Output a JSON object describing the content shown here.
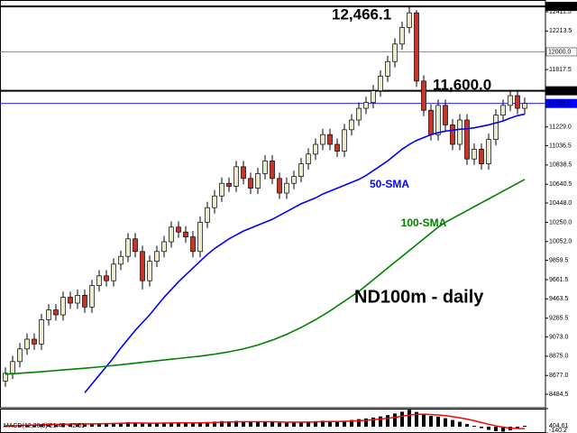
{
  "chart_data": [
    {
      "type": "candlestick",
      "up_color": "#ecebd0",
      "down_color": "#c8342a",
      "ylim": [
        8346,
        12532
      ],
      "yticks": [
        12411.5,
        12213.5,
        11817.5,
        {
          "value": 11229,
          "label": "11229.0"
        },
        11036.5,
        10838.5,
        10640.5,
        {
          "value": 10448,
          "label": "10448.0"
        },
        {
          "value": 10250,
          "label": "10250.0"
        },
        {
          "value": 10052,
          "label": "10052.0"
        },
        9859.5,
        9661.5,
        9463.5,
        9265.5,
        {
          "value": 9073,
          "label": "9073.0"
        },
        {
          "value": 8875,
          "label": "8875.0"
        },
        {
          "value": 8677,
          "label": "8677.0"
        },
        8484.5
      ],
      "open": [
        8620,
        8700,
        8820,
        8950,
        9050,
        9000,
        9250,
        9350,
        9300,
        9480,
        9420,
        9500,
        9380,
        9600,
        9700,
        9650,
        9820,
        9900,
        10080,
        9950,
        9650,
        9850,
        9950,
        10050,
        10200,
        10150,
        10100,
        9950,
        10250,
        10400,
        10520,
        10650,
        10620,
        10820,
        10700,
        10600,
        10750,
        10880,
        10700,
        10550,
        10650,
        10720,
        10850,
        10950,
        11050,
        11150,
        11050,
        10980,
        11200,
        11300,
        11420,
        11480,
        11600,
        11750,
        11900,
        12080,
        12250,
        12400,
        11700,
        11400,
        11150,
        11450,
        11250,
        11050,
        11300,
        10900,
        11000,
        10850,
        11100,
        11350,
        11450,
        11550,
        11420
      ],
      "high": [
        8760,
        8880,
        9010,
        9110,
        9110,
        9310,
        9410,
        9410,
        9540,
        9540,
        9560,
        9560,
        9660,
        9760,
        9760,
        9880,
        9960,
        10140,
        10140,
        10010,
        9910,
        10010,
        10110,
        10260,
        10260,
        10210,
        10160,
        10310,
        10460,
        10580,
        10710,
        10710,
        10880,
        10880,
        10760,
        10810,
        10940,
        10940,
        10760,
        10710,
        10780,
        10910,
        11010,
        11110,
        11210,
        11210,
        11110,
        11260,
        11360,
        11480,
        11540,
        11660,
        11810,
        11960,
        12140,
        12310,
        12466.1,
        12430,
        11760,
        11460,
        11510,
        11510,
        11310,
        11360,
        11360,
        11060,
        11060,
        11160,
        11410,
        11510,
        11610,
        11610,
        11530
      ],
      "low": [
        8560,
        8640,
        8760,
        8890,
        8940,
        8940,
        9190,
        9240,
        9240,
        9360,
        9360,
        9320,
        9320,
        9540,
        9590,
        9590,
        9760,
        9840,
        9890,
        9560,
        9590,
        9790,
        9890,
        9990,
        10090,
        10040,
        9890,
        9890,
        10190,
        10340,
        10460,
        10560,
        10560,
        10640,
        10540,
        10540,
        10690,
        10640,
        10490,
        10490,
        10590,
        10660,
        10790,
        10890,
        10990,
        10990,
        10920,
        10920,
        11140,
        11240,
        11360,
        11420,
        11540,
        11690,
        11840,
        12020,
        12190,
        11640,
        11340,
        11090,
        11090,
        11190,
        10990,
        10990,
        10840,
        10840,
        10790,
        10790,
        11040,
        11290,
        11390,
        11360,
        11360
      ],
      "close": [
        8700,
        8820,
        8950,
        9050,
        9000,
        9250,
        9350,
        9300,
        9480,
        9420,
        9500,
        9380,
        9600,
        9700,
        9650,
        9820,
        9900,
        10080,
        9950,
        9650,
        9850,
        9950,
        10050,
        10200,
        10150,
        10100,
        9950,
        10250,
        10400,
        10520,
        10650,
        10620,
        10820,
        10700,
        10600,
        10750,
        10880,
        10700,
        10550,
        10650,
        10720,
        10850,
        10950,
        11050,
        11150,
        11050,
        10980,
        11200,
        11300,
        11420,
        11480,
        11600,
        11750,
        11900,
        12080,
        12250,
        12400,
        11700,
        11400,
        11150,
        11450,
        11250,
        11050,
        11300,
        10900,
        11000,
        10850,
        11100,
        11350,
        11450,
        11550,
        11420,
        11470
      ],
      "lines": [
        {
          "name": "50-SMA",
          "color": "#0000ff",
          "values": [
            null,
            null,
            null,
            null,
            null,
            null,
            null,
            null,
            null,
            null,
            null,
            8500,
            8590,
            8680,
            8770,
            8860,
            8960,
            9050,
            9140,
            9220,
            9300,
            9390,
            9480,
            9560,
            9640,
            9710,
            9780,
            9850,
            9920,
            9980,
            10030,
            10080,
            10120,
            10160,
            10190,
            10220,
            10250,
            10280,
            10320,
            10360,
            10400,
            10440,
            10470,
            10500,
            10540,
            10570,
            10600,
            10630,
            10660,
            10690,
            10730,
            10780,
            10830,
            10880,
            10940,
            11000,
            11050,
            11090,
            11120,
            11150,
            11170,
            11185,
            11195,
            11205,
            11210,
            11220,
            11235,
            11250,
            11270,
            11290,
            11320,
            11345,
            11360
          ]
        },
        {
          "name": "100-SMA",
          "color": "#008000",
          "values": [
            8690,
            8695,
            8700,
            8705,
            8710,
            8716,
            8722,
            8728,
            8734,
            8740,
            8746,
            8752,
            8758,
            8765,
            8772,
            8780,
            8788,
            8796,
            8804,
            8812,
            8820,
            8828,
            8836,
            8844,
            8852,
            8860,
            8868,
            8876,
            8886,
            8896,
            8908,
            8920,
            8935,
            8950,
            8970,
            8990,
            9015,
            9040,
            9070,
            9100,
            9135,
            9170,
            9210,
            9250,
            9295,
            9340,
            9390,
            9440,
            9490,
            9540,
            9600,
            9660,
            9720,
            9780,
            9840,
            9900,
            9960,
            10020,
            10080,
            10140,
            10200,
            10250,
            10290,
            10330,
            10370,
            10410,
            10450,
            10490,
            10530,
            10570,
            10610,
            10650,
            10690
          ]
        }
      ],
      "levels": [
        {
          "value": 12466.1,
          "color": "#000000"
        },
        {
          "value": 12000,
          "label": "12000.0",
          "color": "#808080"
        },
        {
          "value": 11600,
          "label": "11600.0",
          "color": "#000000"
        },
        {
          "value": 11469.8,
          "color": "#0000ff"
        }
      ],
      "annotations": [
        "12,466.1",
        "11,600.0",
        "ND100m - daily"
      ]
    },
    {
      "type": "macd",
      "title": "MACD(12,26,9) 21.46 -42.61",
      "ylim": [
        -140.2,
        404.61
      ],
      "yticks": [
        404.61,
        -140.2
      ],
      "histogram": {
        "color": "#000000",
        "values": [
          20,
          30,
          40,
          50,
          45,
          60,
          70,
          65,
          75,
          70,
          72,
          60,
          70,
          80,
          78,
          85,
          90,
          100,
          95,
          70,
          72,
          78,
          85,
          95,
          92,
          88,
          75,
          90,
          105,
          115,
          125,
          120,
          130,
          120,
          105,
          110,
          118,
          105,
          88,
          90,
          95,
          105,
          115,
          125,
          135,
          128,
          118,
          135,
          150,
          170,
          185,
          205,
          230,
          260,
          295,
          335,
          380,
          330,
          290,
          240,
          225,
          190,
          150,
          110,
          60,
          20,
          -30,
          -70,
          -100,
          -110,
          -80,
          -30,
          21.46
        ]
      },
      "signal": {
        "color": "#ff0000",
        "values": [
          15,
          20,
          27,
          33,
          37,
          42,
          48,
          52,
          57,
          60,
          63,
          62,
          64,
          67,
          69,
          72,
          76,
          81,
          84,
          81,
          80,
          80,
          81,
          84,
          86,
          87,
          85,
          86,
          90,
          95,
          101,
          105,
          110,
          112,
          111,
          111,
          112,
          111,
          106,
          103,
          101,
          102,
          104,
          108,
          114,
          117,
          117,
          120,
          126,
          135,
          145,
          157,
          172,
          189,
          210,
          235,
          264,
          277,
          280,
          272,
          263,
          248,
          225,
          200,
          170,
          135,
          95,
          55,
          20,
          -10,
          -30,
          -40,
          -42.61
        ]
      }
    }
  ]
}
